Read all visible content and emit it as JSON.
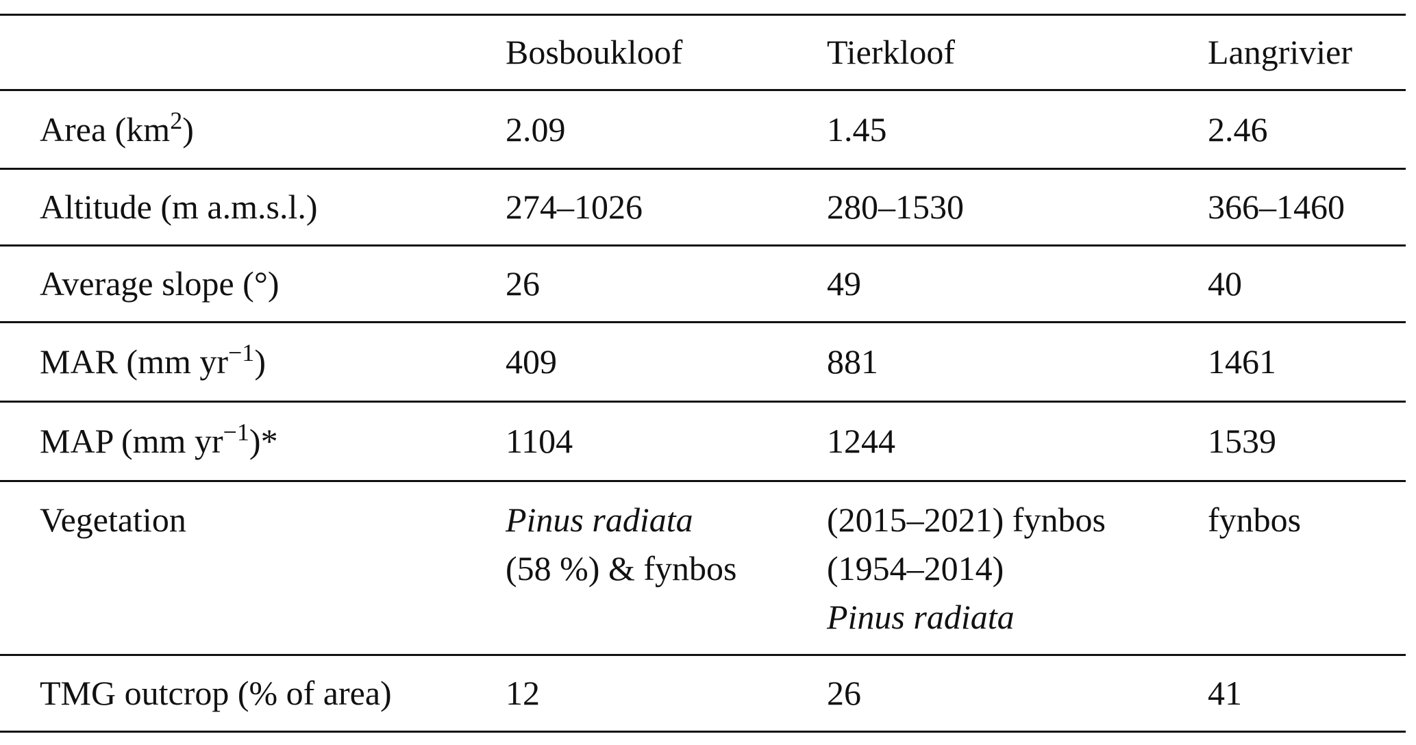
{
  "header": {
    "columns": [
      "Bosboukloof",
      "Tierkloof",
      "Langrivier"
    ]
  },
  "rows": [
    {
      "label": [
        {
          "text": "Area (km"
        },
        {
          "text": "2",
          "style": "sup"
        },
        {
          "text": ")"
        }
      ],
      "cells": [
        "2.09",
        "1.45",
        "2.46"
      ]
    },
    {
      "label": [
        {
          "text": "Altitude (m a.m.s.l.)"
        }
      ],
      "cells": [
        "274–1026",
        "280–1530",
        "366–1460"
      ]
    },
    {
      "label": [
        {
          "text": "Average slope (°)"
        }
      ],
      "cells": [
        "26",
        "49",
        "40"
      ]
    },
    {
      "label": [
        {
          "text": "MAR (mm yr"
        },
        {
          "text": "−1",
          "style": "sup"
        },
        {
          "text": ")"
        }
      ],
      "cells": [
        "409",
        "881",
        "1461"
      ]
    },
    {
      "label": [
        {
          "text": "MAP (mm yr"
        },
        {
          "text": "−1",
          "style": "sup"
        },
        {
          "text": ")*"
        }
      ],
      "cells": [
        "1104",
        "1244",
        "1539"
      ]
    },
    {
      "label": [
        {
          "text": "Vegetation"
        }
      ],
      "cells": [
        [
          {
            "text": "Pinus radiata",
            "style": "italic"
          },
          {
            "text": "(58 %) & fynbos"
          }
        ],
        [
          {
            "text": "(2015–2021) fynbos"
          },
          {
            "text": "(1954–2014)"
          },
          {
            "text": "Pinus radiata",
            "style": "italic"
          }
        ],
        "fynbos"
      ]
    },
    {
      "label": [
        {
          "text": "TMG outcrop (% of area)"
        }
      ],
      "cells": [
        "12",
        "26",
        "41"
      ]
    }
  ]
}
